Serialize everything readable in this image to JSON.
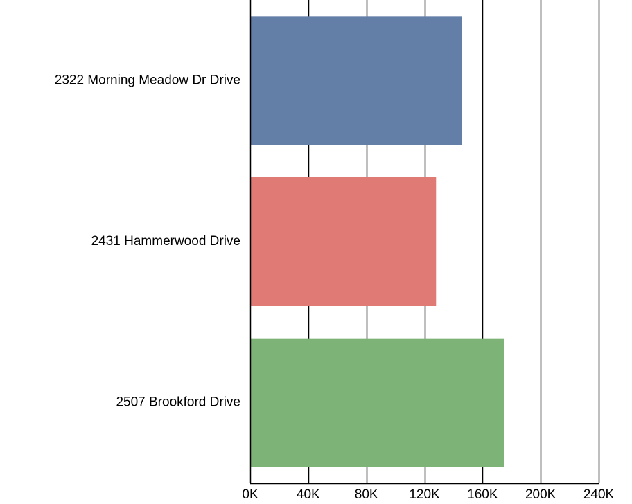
{
  "chart_data": {
    "type": "bar",
    "orientation": "horizontal",
    "categories": [
      "2322 Morning Meadow Dr Drive",
      "2431 Hammerwood Drive",
      "2507 Brookford Drive"
    ],
    "values": [
      146000,
      128000,
      175000
    ],
    "colors": [
      "#637ea7",
      "#e07a74",
      "#7eb377"
    ],
    "xlim": [
      0,
      240000
    ],
    "xticks": [
      0,
      40000,
      80000,
      120000,
      160000,
      200000,
      240000
    ],
    "xtick_labels": [
      "0K",
      "40K",
      "80K",
      "120K",
      "160K",
      "200K",
      "240K"
    ],
    "grid": true,
    "title": "",
    "xlabel": "",
    "ylabel": ""
  }
}
